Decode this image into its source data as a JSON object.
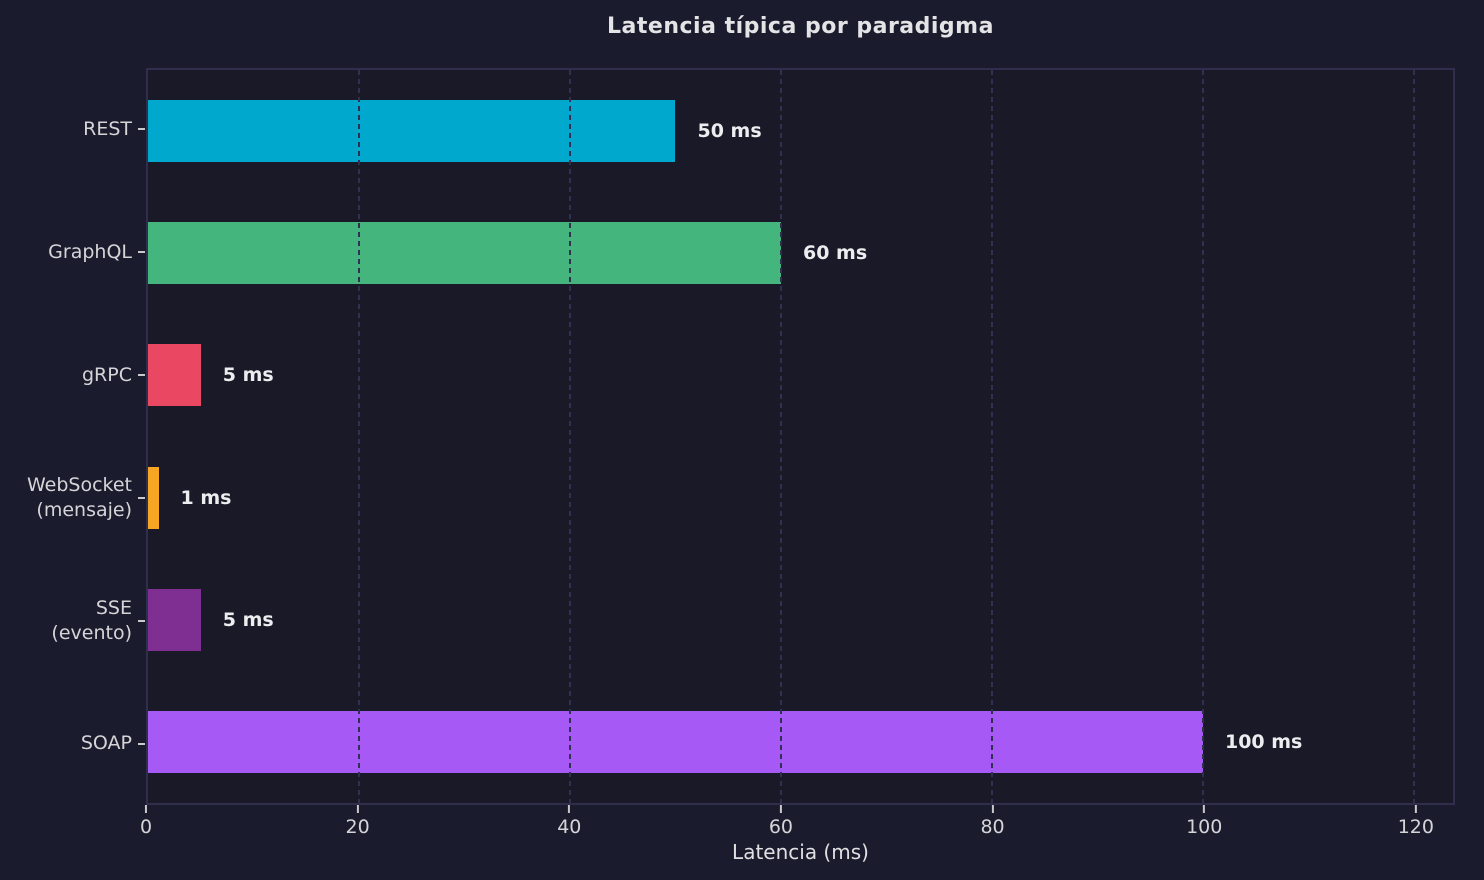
{
  "title": "Latencia típica por paradigma",
  "xlabel": "Latencia (ms)",
  "colors": {
    "figure_background": "#1b1b2e",
    "plot_background": "#191927",
    "plot_border": "#2f2f4d",
    "gridline": "#303152",
    "tick_text": "#d5d5d8",
    "title_text": "#e4e4e6",
    "value_label_text": "#ededef"
  },
  "chart_data": {
    "type": "bar",
    "orientation": "horizontal",
    "title": "Latencia típica por paradigma",
    "xlabel": "Latencia (ms)",
    "ylabel": "",
    "xlim": [
      0,
      123.7
    ],
    "xticks": [
      0,
      20,
      40,
      60,
      80,
      100,
      120
    ],
    "grid": true,
    "grid_style": "dashed",
    "legend": "none",
    "categories": [
      "REST",
      "GraphQL",
      "gRPC",
      "WebSocket (mensaje)",
      "SSE (evento)",
      "SOAP"
    ],
    "label_lines": [
      [
        "REST"
      ],
      [
        "GraphQL"
      ],
      [
        "gRPC"
      ],
      [
        "WebSocket",
        "(mensaje)"
      ],
      [
        "SSE",
        "(evento)"
      ],
      [
        "SOAP"
      ]
    ],
    "values": [
      50,
      60,
      5,
      1,
      5,
      100
    ],
    "value_labels": [
      "50 ms",
      "60 ms",
      "5 ms",
      "1 ms",
      "5 ms",
      "100 ms"
    ],
    "bar_colors": [
      "#00a8ce",
      "#45b57e",
      "#ea4763",
      "#f6a623",
      "#7e2f91",
      "#a759f6"
    ]
  }
}
